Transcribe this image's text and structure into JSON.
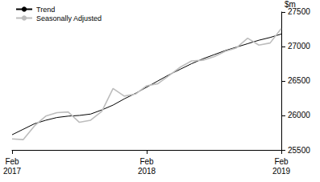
{
  "chart_data": {
    "type": "line",
    "y_label": "$m",
    "categories": [
      "Feb 2017",
      null,
      null,
      null,
      null,
      null,
      null,
      null,
      null,
      null,
      null,
      null,
      "Feb 2018",
      null,
      null,
      null,
      null,
      null,
      null,
      null,
      null,
      null,
      null,
      null,
      "Feb 2019"
    ],
    "series": [
      {
        "name": "Trend",
        "color": "#000000",
        "values": [
          25720,
          25800,
          25880,
          25930,
          25970,
          25990,
          26000,
          26020,
          26080,
          26150,
          26240,
          26320,
          26410,
          26500,
          26590,
          26670,
          26750,
          26820,
          26880,
          26940,
          26990,
          27040,
          27090,
          27130,
          27180
        ]
      },
      {
        "name": "Seasonally Adjusted",
        "color": "#bdbdbd",
        "values": [
          25660,
          25650,
          25850,
          25990,
          26040,
          26050,
          25900,
          25930,
          26060,
          26390,
          26280,
          26310,
          26430,
          26460,
          26580,
          26700,
          26790,
          26800,
          26850,
          26930,
          26980,
          27120,
          27020,
          27050,
          27260
        ]
      }
    ],
    "ylim": [
      25500,
      27500
    ],
    "yticks": [
      25500,
      26000,
      26500,
      27000,
      27500
    ],
    "grid": false,
    "legend": "top-left"
  }
}
